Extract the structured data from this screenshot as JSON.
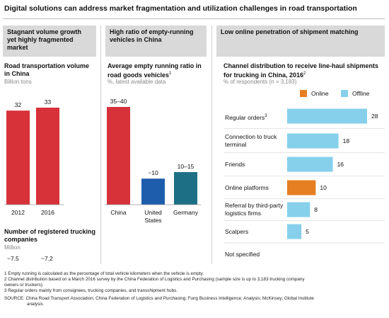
{
  "title": "Digital solutions can address market fragmentation and utilization challenges in road transportation",
  "colors": {
    "red": "#d7313a",
    "blue": "#1d5dab",
    "teal": "#1d6f86",
    "orange": "#e67e22",
    "light_blue": "#86d0ec",
    "panel_header": "#d9d9d9"
  },
  "panel1": {
    "header": "Stagnant volume growth yet highly fragmented market",
    "chart_title": "Road transportation volume in China",
    "unit": "Billion tons",
    "registered_title": "Number of registered trucking companies",
    "registered_unit": "Million",
    "registered_values": [
      "~7.5",
      "~7.2"
    ]
  },
  "panel2": {
    "header": "High ratio of empty-running vehicles in China",
    "chart_title": "Average empty running ratio in road goods vehicles",
    "footnote_mark": "1",
    "unit": "%, latest available data"
  },
  "panel3": {
    "header": "Low online penetration of shipment matching",
    "chart_title": "Channel distribution to receive line-haul shipments for trucking in China, 2016",
    "footnote_mark": "2",
    "unit": "% of respondents (n = 3,183)",
    "legend_online": "Online",
    "legend_offline": "Offline"
  },
  "chart_data": [
    {
      "type": "bar",
      "title": "Road transportation volume in China",
      "ylabel": "Billion tons",
      "categories": [
        "2012",
        "2016"
      ],
      "values": [
        32,
        33
      ],
      "value_labels": [
        "32",
        "33"
      ],
      "ylim": [
        0,
        33
      ]
    },
    {
      "type": "bar",
      "title": "Average empty running ratio in road goods vehicles",
      "ylabel": "%, latest available data",
      "categories": [
        "China",
        "United States",
        "Germany"
      ],
      "values": [
        37.5,
        10,
        12.5
      ],
      "value_labels": [
        "35–40",
        "~10",
        "10–15"
      ],
      "colors": [
        "#d7313a",
        "#1d5dab",
        "#1d6f86"
      ],
      "ylim": [
        0,
        37.5
      ]
    },
    {
      "type": "bar",
      "orientation": "horizontal",
      "title": "Channel distribution to receive line-haul shipments for trucking in China, 2016",
      "xlabel": "% of respondents (n = 3,183)",
      "categories": [
        "Regular orders",
        "Connection to truck terminal",
        "Friends",
        "Online platforms",
        "Referral by third-party logistics firms",
        "Scalpers",
        "Not specified"
      ],
      "category_superscripts": [
        "3",
        "",
        "",
        "",
        "",
        "",
        ""
      ],
      "values": [
        28,
        18,
        16,
        10,
        8,
        5,
        null
      ],
      "value_labels": [
        "28",
        "18",
        "16",
        "10",
        "8",
        "5",
        ""
      ],
      "channel": [
        "Offline",
        "Offline",
        "Offline",
        "Online",
        "Offline",
        "Offline",
        ""
      ],
      "legend": [
        "Online",
        "Offline"
      ],
      "legend_position": "top-right",
      "xlim": [
        0,
        28
      ]
    }
  ],
  "footnotes": [
    "1  Empty running is calculated as the percentage of total vehicle kilometers when the vehicle is empty.",
    "2  Channel distribution based on a March 2016 survey by the China Federation of Logistics and Purchasing (sample size is up to 3,183 trucking company",
    "    owners or truckers).",
    "3  Regular orders mainly from consignees, trucking companies, and transshipment hubs."
  ],
  "source_lines": [
    "SOURCE:  China Road Transport Association; China Federation of Logistics and Purchasing; Fung Business Intelligence; Analysis; McKinsey; Global Institute",
    "analysis"
  ]
}
